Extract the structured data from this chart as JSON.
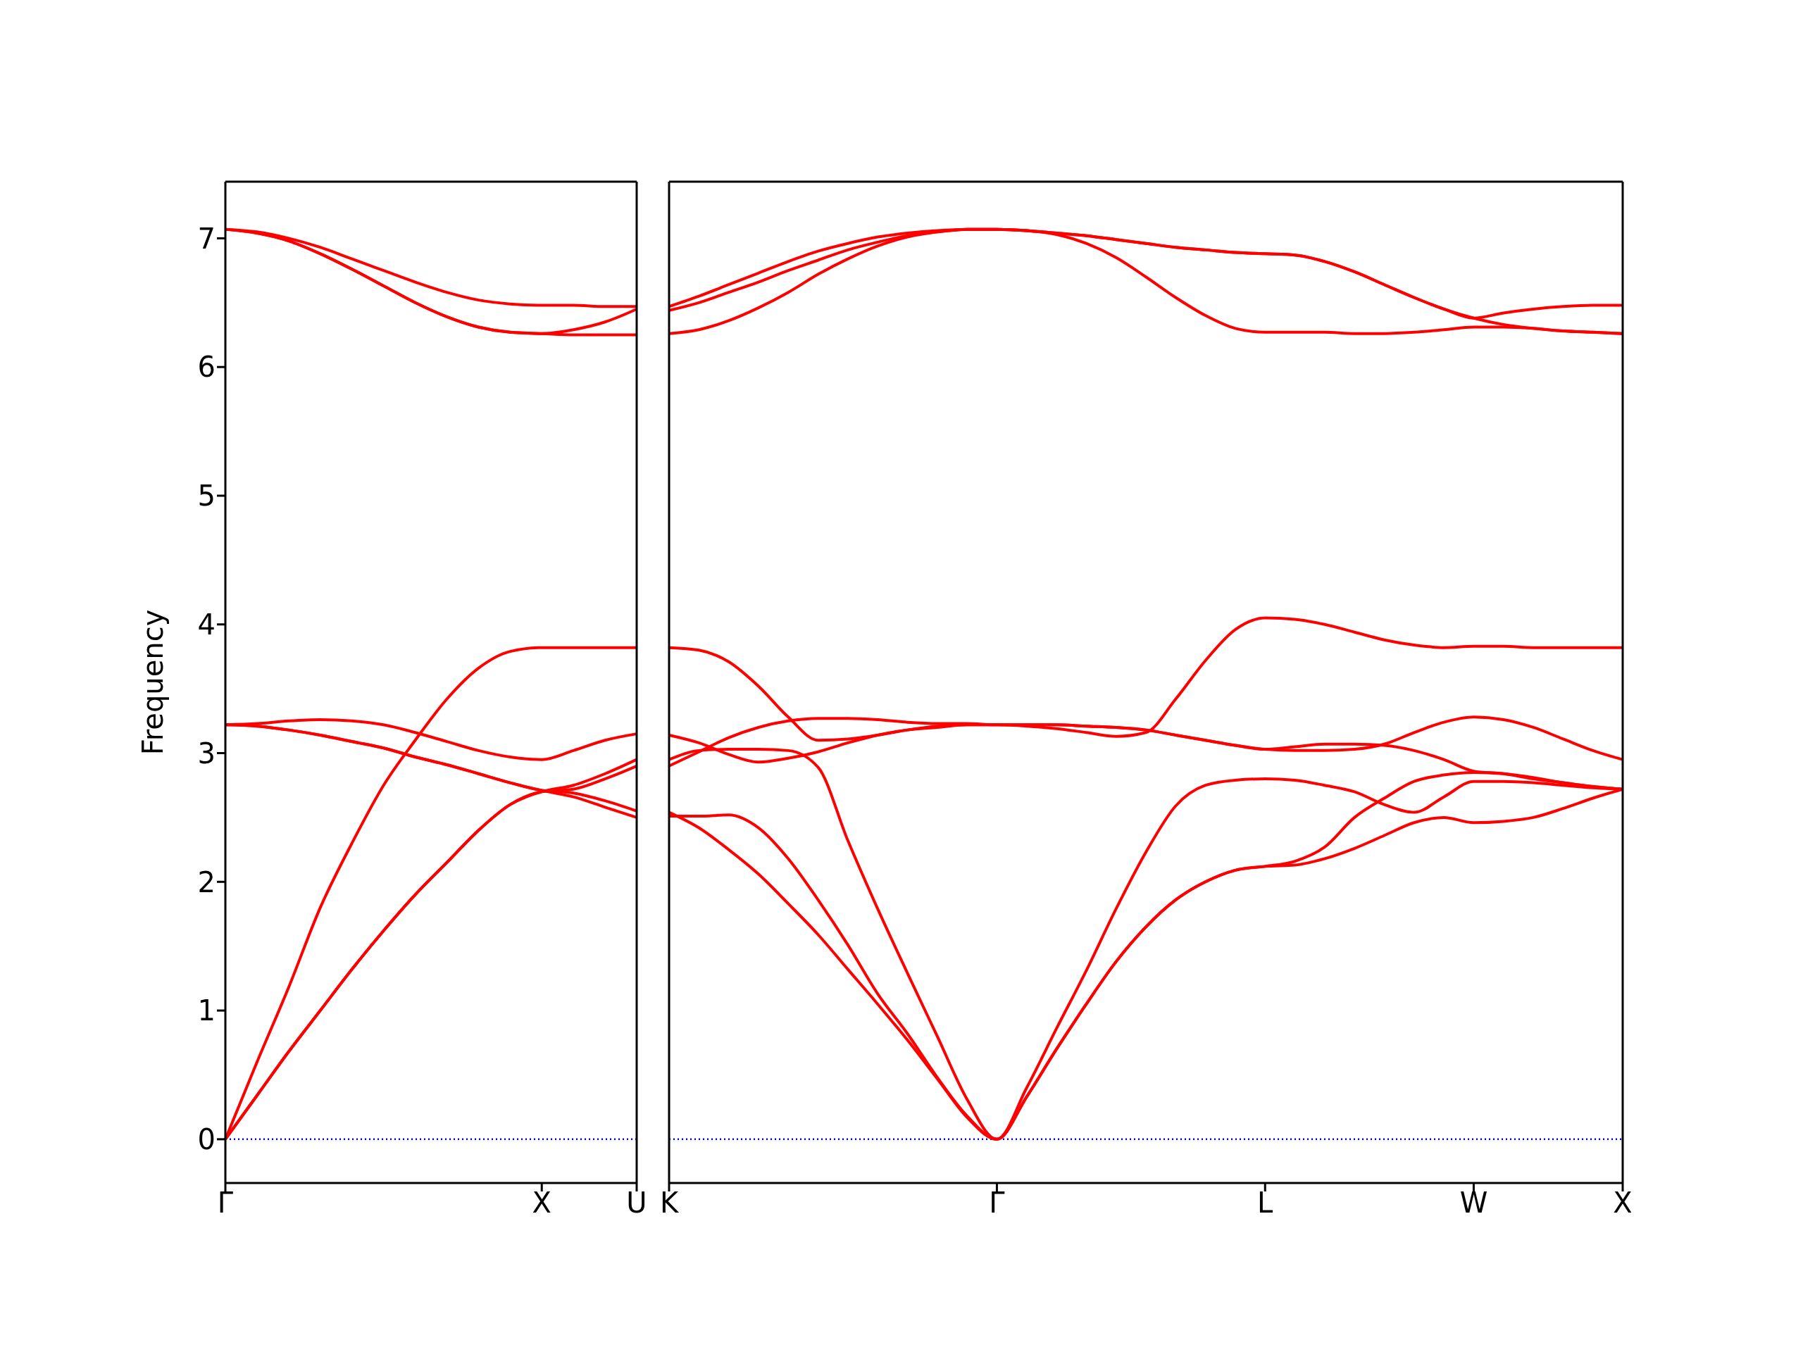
{
  "chart_data": [
    {
      "type": "line",
      "ylabel": "Frequency",
      "ylim": [
        -0.34,
        7.44
      ],
      "yticks": [
        0,
        1,
        2,
        3,
        4,
        5,
        6,
        7
      ],
      "categories": [
        "Γ",
        null,
        null,
        null,
        null,
        null,
        null,
        null,
        null,
        null,
        "X",
        null,
        null,
        "U"
      ],
      "ref_lines": [
        {
          "axis": "y",
          "value": 0,
          "color": "#0000ff",
          "line_style": "dotted"
        }
      ],
      "series": [
        {
          "color": "#ff0000",
          "values": [
            0,
            0.34,
            0.68,
            1.0,
            1.32,
            1.62,
            1.9,
            2.15,
            2.4,
            2.6,
            2.7,
            2.75,
            2.84,
            2.95
          ]
        },
        {
          "color": "#ff0000",
          "values": [
            0,
            0.34,
            0.68,
            1.0,
            1.32,
            1.62,
            1.9,
            2.15,
            2.4,
            2.6,
            2.7,
            2.72,
            2.8,
            2.9
          ]
        },
        {
          "color": "#ff0000",
          "values": [
            0,
            0.6,
            1.18,
            1.8,
            2.3,
            2.75,
            3.1,
            3.42,
            3.66,
            3.79,
            3.82,
            3.82,
            3.82,
            3.82
          ]
        },
        {
          "color": "#ff0000",
          "values": [
            3.22,
            3.23,
            3.25,
            3.26,
            3.25,
            3.22,
            3.16,
            3.09,
            3.02,
            2.97,
            2.95,
            3.02,
            3.1,
            3.15
          ]
        },
        {
          "color": "#ff0000",
          "values": [
            3.22,
            3.21,
            3.18,
            3.14,
            3.09,
            3.04,
            2.97,
            2.91,
            2.84,
            2.77,
            2.71,
            2.69,
            2.63,
            2.55
          ]
        },
        {
          "color": "#ff0000",
          "values": [
            3.22,
            3.21,
            3.18,
            3.14,
            3.09,
            3.04,
            2.97,
            2.91,
            2.84,
            2.77,
            2.71,
            2.66,
            2.58,
            2.5
          ]
        },
        {
          "color": "#ff0000",
          "values": [
            7.07,
            7.05,
            7.0,
            6.93,
            6.84,
            6.75,
            6.66,
            6.58,
            6.52,
            6.49,
            6.48,
            6.48,
            6.47,
            6.47
          ]
        },
        {
          "color": "#ff0000",
          "values": [
            7.07,
            7.04,
            6.98,
            6.88,
            6.76,
            6.63,
            6.5,
            6.39,
            6.31,
            6.27,
            6.26,
            6.29,
            6.35,
            6.45
          ]
        },
        {
          "color": "#ff0000",
          "values": [
            7.07,
            7.04,
            6.98,
            6.88,
            6.76,
            6.63,
            6.5,
            6.39,
            6.31,
            6.27,
            6.26,
            6.25,
            6.25,
            6.25
          ]
        }
      ]
    },
    {
      "type": "line",
      "tick_labels": "x",
      "ylim": [
        -0.34,
        7.44
      ],
      "yticks": [
        0,
        1,
        2,
        3,
        4,
        5,
        6,
        7
      ],
      "categories": [
        "K",
        null,
        null,
        null,
        null,
        null,
        null,
        null,
        null,
        null,
        null,
        "Γ",
        null,
        null,
        null,
        null,
        null,
        null,
        null,
        null,
        "L",
        null,
        null,
        null,
        null,
        null,
        null,
        "W",
        null,
        null,
        null,
        null,
        "X"
      ],
      "ref_lines": [
        {
          "axis": "y",
          "value": 0,
          "color": "#0000ff",
          "line_style": "dotted"
        }
      ],
      "series": [
        {
          "color": "#ff0000",
          "values": [
            3.82,
            3.8,
            3.71,
            3.52,
            3.28,
            3.1,
            3.11,
            3.14,
            3.18,
            3.21,
            3.22,
            3.22,
            3.21,
            3.19,
            3.16,
            3.13,
            3.16,
            3.42,
            3.72,
            3.96,
            4.05,
            4.04,
            4.0,
            3.94,
            3.88,
            3.84,
            3.82,
            3.83,
            3.83,
            3.82,
            3.82,
            3.82,
            3.82
          ]
        },
        {
          "color": "#ff0000",
          "values": [
            3.14,
            3.08,
            2.99,
            2.93,
            2.96,
            3.01,
            3.08,
            3.14,
            3.18,
            3.2,
            3.22,
            3.22,
            3.22,
            3.22,
            3.21,
            3.2,
            3.18,
            3.14,
            3.1,
            3.06,
            3.03,
            3.05,
            3.07,
            3.07,
            3.06,
            3.02,
            2.95,
            2.86,
            2.84,
            2.8,
            2.77,
            2.74,
            2.72
          ]
        },
        {
          "color": "#ff0000",
          "values": [
            2.9,
            3.01,
            3.12,
            3.2,
            3.25,
            3.27,
            3.27,
            3.26,
            3.24,
            3.23,
            3.23,
            3.22,
            3.22,
            3.22,
            3.21,
            3.2,
            3.18,
            3.14,
            3.1,
            3.06,
            3.03,
            3.02,
            3.02,
            3.03,
            3.07,
            3.16,
            3.24,
            3.28,
            3.26,
            3.2,
            3.11,
            3.02,
            2.95
          ]
        },
        {
          "color": "#ff0000",
          "values": [
            2.95,
            3.02,
            3.03,
            3.03,
            3.02,
            2.89,
            2.32,
            1.79,
            1.29,
            0.8,
            0.31,
            0,
            0.4,
            0.86,
            1.31,
            1.79,
            2.23,
            2.59,
            2.75,
            2.79,
            2.8,
            2.79,
            2.75,
            2.7,
            2.6,
            2.54,
            2.66,
            2.78,
            2.78,
            2.77,
            2.75,
            2.73,
            2.72
          ]
        },
        {
          "color": "#ff0000",
          "values": [
            2.51,
            2.51,
            2.52,
            2.42,
            2.18,
            1.86,
            1.51,
            1.13,
            0.82,
            0.48,
            0.18,
            0,
            0.33,
            0.7,
            1.05,
            1.38,
            1.65,
            1.86,
            2.0,
            2.09,
            2.12,
            2.16,
            2.27,
            2.5,
            2.65,
            2.78,
            2.83,
            2.85,
            2.84,
            2.81,
            2.77,
            2.74,
            2.72
          ]
        },
        {
          "color": "#ff0000",
          "values": [
            2.54,
            2.42,
            2.25,
            2.06,
            1.83,
            1.59,
            1.32,
            1.05,
            0.77,
            0.47,
            0.17,
            0,
            0.33,
            0.7,
            1.05,
            1.38,
            1.65,
            1.86,
            2.0,
            2.09,
            2.12,
            2.13,
            2.18,
            2.26,
            2.36,
            2.46,
            2.5,
            2.46,
            2.47,
            2.5,
            2.57,
            2.65,
            2.72
          ]
        },
        {
          "color": "#ff0000",
          "values": [
            6.47,
            6.55,
            6.64,
            6.73,
            6.82,
            6.9,
            6.96,
            7.01,
            7.04,
            7.06,
            7.07,
            7.07,
            7.06,
            7.04,
            7.02,
            6.99,
            6.96,
            6.93,
            6.91,
            6.89,
            6.88,
            6.87,
            6.82,
            6.74,
            6.64,
            6.54,
            6.45,
            6.38,
            6.42,
            6.45,
            6.47,
            6.48,
            6.48
          ]
        },
        {
          "color": "#ff0000",
          "values": [
            6.44,
            6.5,
            6.58,
            6.66,
            6.75,
            6.83,
            6.91,
            6.97,
            7.02,
            7.05,
            7.07,
            7.07,
            7.06,
            7.04,
            7.02,
            6.99,
            6.96,
            6.93,
            6.91,
            6.89,
            6.88,
            6.87,
            6.82,
            6.74,
            6.64,
            6.54,
            6.45,
            6.38,
            6.33,
            6.3,
            6.28,
            6.27,
            6.26
          ]
        },
        {
          "color": "#ff0000",
          "values": [
            6.26,
            6.29,
            6.36,
            6.46,
            6.58,
            6.72,
            6.84,
            6.94,
            7.01,
            7.05,
            7.07,
            7.07,
            7.06,
            7.03,
            6.96,
            6.85,
            6.7,
            6.54,
            6.4,
            6.3,
            6.27,
            6.27,
            6.27,
            6.26,
            6.26,
            6.27,
            6.29,
            6.31,
            6.31,
            6.3,
            6.28,
            6.27,
            6.26
          ]
        }
      ]
    }
  ]
}
